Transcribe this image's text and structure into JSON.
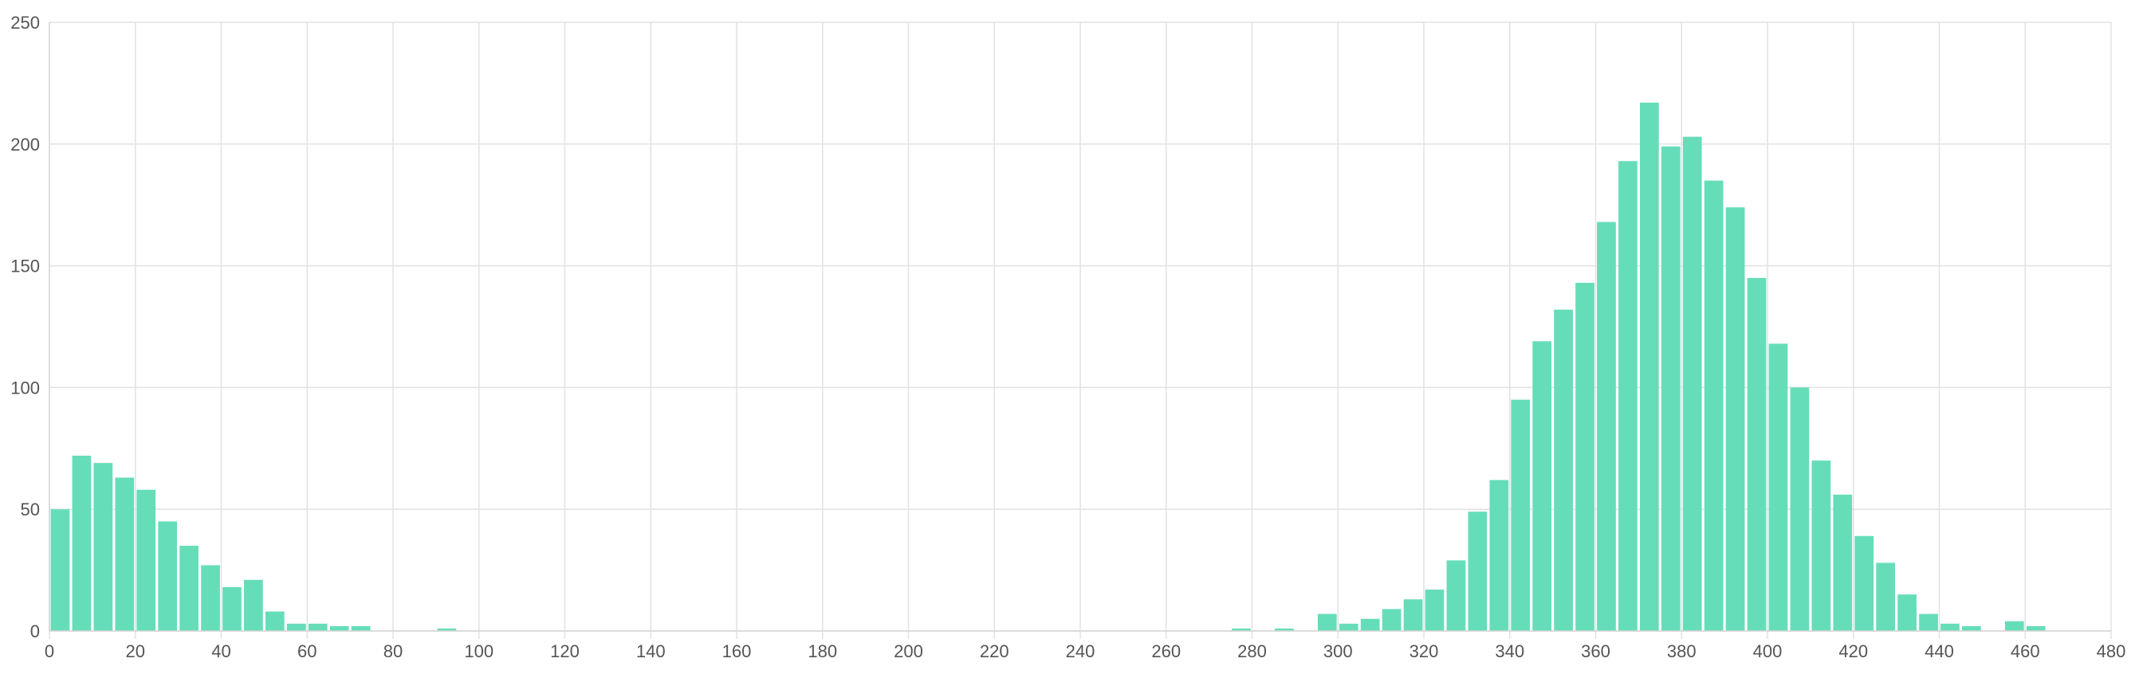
{
  "chart_data": {
    "type": "bar",
    "title": "",
    "xlabel": "",
    "ylabel": "",
    "xlim": [
      0,
      480
    ],
    "ylim": [
      0,
      250
    ],
    "xticks": [
      0,
      20,
      40,
      60,
      80,
      100,
      120,
      140,
      160,
      180,
      200,
      220,
      240,
      260,
      280,
      300,
      320,
      340,
      360,
      380,
      400,
      420,
      440,
      460,
      480
    ],
    "yticks": [
      0,
      50,
      100,
      150,
      200,
      250
    ],
    "bin_width": 5,
    "grid": true,
    "legend": "none",
    "bar_color": "#66ddb9",
    "series": [
      {
        "x": [
          0,
          5,
          10,
          15,
          20,
          25,
          30,
          35,
          40,
          45,
          50,
          55,
          60,
          65,
          70,
          90,
          275,
          285,
          295,
          300,
          305,
          310,
          315,
          320,
          325,
          330,
          335,
          340,
          345,
          350,
          355,
          360,
          365,
          370,
          375,
          380,
          385,
          390,
          395,
          400,
          405,
          410,
          415,
          420,
          425,
          430,
          435,
          440,
          445,
          455,
          460
        ],
        "values": [
          50,
          72,
          69,
          63,
          58,
          45,
          35,
          27,
          18,
          21,
          8,
          3,
          3,
          2,
          2,
          1,
          1,
          1,
          7,
          3,
          5,
          9,
          13,
          17,
          29,
          49,
          62,
          95,
          119,
          132,
          143,
          168,
          193,
          217,
          199,
          203,
          185,
          174,
          145,
          118,
          100,
          70,
          56,
          39,
          28,
          15,
          7,
          3,
          2,
          4,
          2
        ]
      }
    ]
  }
}
